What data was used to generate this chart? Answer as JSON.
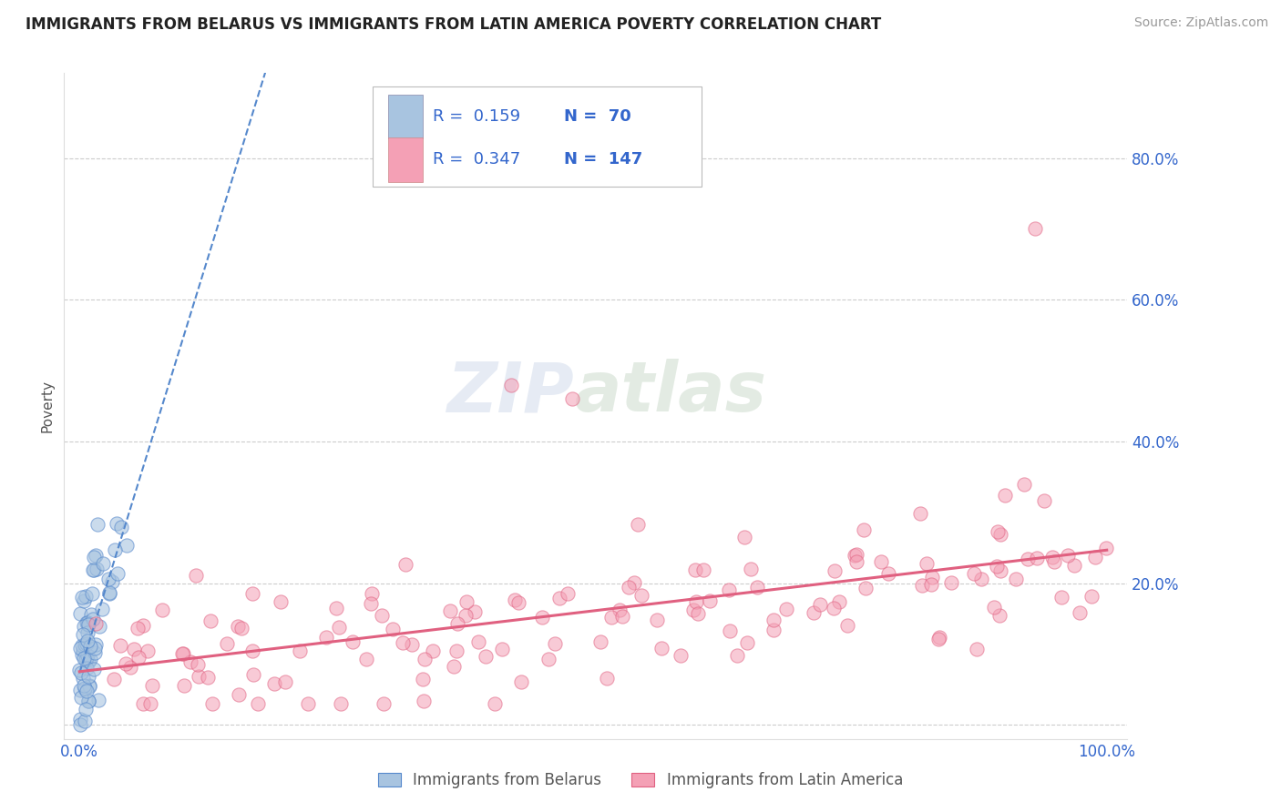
{
  "title": "IMMIGRANTS FROM BELARUS VS IMMIGRANTS FROM LATIN AMERICA POVERTY CORRELATION CHART",
  "source": "Source: ZipAtlas.com",
  "ylabel": "Poverty",
  "color_belarus": "#a8c4e0",
  "color_latin": "#f4a0b5",
  "color_blue_line": "#5588cc",
  "color_pink_line": "#e06080",
  "color_text_blue": "#3366cc",
  "color_text_dark": "#222222",
  "color_grid": "#cccccc",
  "watermark_color": "#d5dff0",
  "legend_label1": "Immigrants from Belarus",
  "legend_label2": "Immigrants from Latin America",
  "bel_R": 0.159,
  "bel_N": 70,
  "lat_R": 0.347,
  "lat_N": 147
}
